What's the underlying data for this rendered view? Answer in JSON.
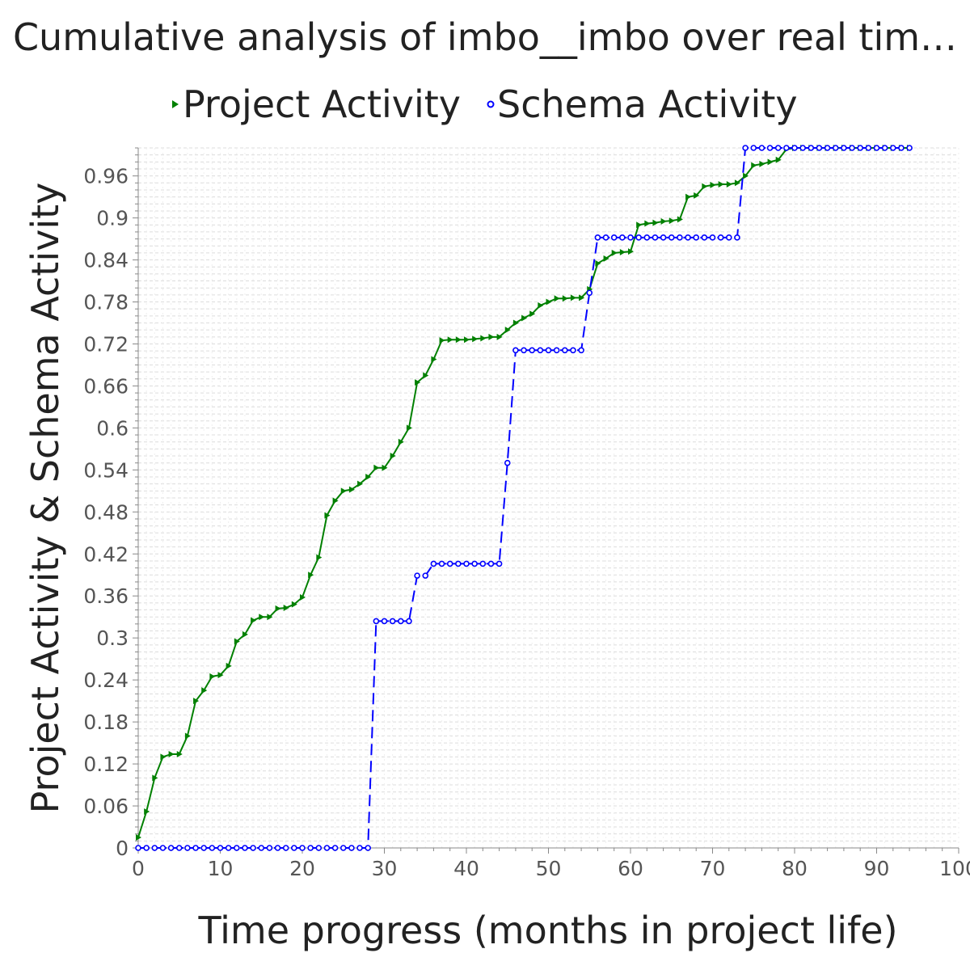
{
  "chart_data": {
    "type": "line",
    "title": "Cumulative analysis of imbo__imbo over real tim…",
    "xlabel": "Time progress (months in project life)",
    "ylabel": "Project Activity & Schema Activity",
    "xlim": [
      0,
      100
    ],
    "ylim": [
      0,
      1.0
    ],
    "x_ticks": [
      0,
      10,
      20,
      30,
      40,
      50,
      60,
      70,
      80,
      90,
      100
    ],
    "x_tick_labels": [
      "0",
      "10",
      "20",
      "30",
      "40",
      "50",
      "60",
      "70",
      "80",
      "90",
      "100"
    ],
    "y_ticks": [
      0,
      0.06,
      0.12,
      0.18,
      0.24,
      0.3,
      0.36,
      0.42,
      0.48,
      0.54,
      0.6,
      0.66,
      0.72,
      0.78,
      0.84,
      0.9,
      0.96
    ],
    "y_tick_labels": [
      "0",
      "0.06",
      "0.12",
      "0.18",
      "0.24",
      "0.3",
      "0.36",
      "0.42",
      "0.48",
      "0.54",
      "0.6",
      "0.66",
      "0.72",
      "0.78",
      "0.84",
      "0.9",
      "0.96"
    ],
    "grid": true,
    "legend_position": "top",
    "series": [
      {
        "name": "Project Activity",
        "color": "#008000",
        "marker": "triangle-right",
        "line_style": "solid",
        "x": [
          0,
          1,
          2,
          3,
          4,
          5,
          6,
          7,
          8,
          9,
          10,
          11,
          12,
          13,
          14,
          15,
          16,
          17,
          18,
          19,
          20,
          21,
          22,
          23,
          24,
          25,
          26,
          27,
          28,
          29,
          30,
          31,
          32,
          33,
          34,
          35,
          36,
          37,
          38,
          39,
          40,
          41,
          42,
          43,
          44,
          45,
          46,
          47,
          48,
          49,
          50,
          51,
          52,
          53,
          54,
          55,
          56,
          57,
          58,
          59,
          60,
          61,
          62,
          63,
          64,
          65,
          66,
          67,
          68,
          69,
          70,
          71,
          72,
          73,
          74,
          75,
          76,
          77,
          78,
          79,
          80,
          81,
          82,
          83,
          84,
          85,
          86,
          87,
          88,
          89,
          90,
          91,
          92,
          93,
          94
        ],
        "y": [
          0.015,
          0.052,
          0.1,
          0.13,
          0.134,
          0.134,
          0.16,
          0.21,
          0.225,
          0.245,
          0.247,
          0.26,
          0.295,
          0.305,
          0.325,
          0.33,
          0.33,
          0.342,
          0.343,
          0.348,
          0.358,
          0.39,
          0.415,
          0.475,
          0.496,
          0.51,
          0.512,
          0.52,
          0.53,
          0.543,
          0.543,
          0.56,
          0.58,
          0.6,
          0.665,
          0.675,
          0.698,
          0.725,
          0.726,
          0.726,
          0.726,
          0.727,
          0.728,
          0.73,
          0.73,
          0.74,
          0.75,
          0.757,
          0.763,
          0.775,
          0.78,
          0.785,
          0.785,
          0.786,
          0.786,
          0.798,
          0.835,
          0.842,
          0.85,
          0.851,
          0.852,
          0.89,
          0.892,
          0.893,
          0.895,
          0.896,
          0.898,
          0.93,
          0.932,
          0.945,
          0.947,
          0.948,
          0.948,
          0.95,
          0.96,
          0.975,
          0.977,
          0.98,
          0.983,
          0.998,
          1.0,
          1.0,
          1.0,
          1.0,
          1.0,
          1.0,
          1.0,
          1.0,
          1.0,
          1.0,
          1.0,
          1.0,
          1.0,
          1.0,
          1.0
        ]
      },
      {
        "name": "Schema Activity",
        "color": "#0000ff",
        "marker": "circle",
        "line_style": "dashed",
        "x": [
          0,
          1,
          2,
          3,
          4,
          5,
          6,
          7,
          8,
          9,
          10,
          11,
          12,
          13,
          14,
          15,
          16,
          17,
          18,
          19,
          20,
          21,
          22,
          23,
          24,
          25,
          26,
          27,
          28,
          29,
          30,
          31,
          32,
          33,
          34,
          35,
          36,
          37,
          38,
          39,
          40,
          41,
          42,
          43,
          44,
          45,
          46,
          47,
          48,
          49,
          50,
          51,
          52,
          53,
          54,
          55,
          56,
          57,
          58,
          59,
          60,
          61,
          62,
          63,
          64,
          65,
          66,
          67,
          68,
          69,
          70,
          71,
          72,
          73,
          74,
          75,
          76,
          77,
          78,
          79,
          80,
          81,
          82,
          83,
          84,
          85,
          86,
          87,
          88,
          89,
          90,
          91,
          92,
          93,
          94
        ],
        "y": [
          0,
          0,
          0,
          0,
          0,
          0,
          0,
          0,
          0,
          0,
          0,
          0,
          0,
          0,
          0,
          0,
          0,
          0,
          0,
          0,
          0,
          0,
          0,
          0,
          0,
          0,
          0,
          0,
          0,
          0.324,
          0.324,
          0.324,
          0.324,
          0.324,
          0.389,
          0.389,
          0.406,
          0.406,
          0.406,
          0.406,
          0.406,
          0.406,
          0.406,
          0.406,
          0.406,
          0.55,
          0.711,
          0.711,
          0.711,
          0.711,
          0.711,
          0.711,
          0.711,
          0.711,
          0.711,
          0.793,
          0.872,
          0.872,
          0.872,
          0.872,
          0.872,
          0.872,
          0.872,
          0.872,
          0.872,
          0.872,
          0.872,
          0.872,
          0.872,
          0.872,
          0.872,
          0.872,
          0.872,
          0.872,
          1.0,
          1.0,
          1.0,
          1.0,
          1.0,
          1.0,
          1.0,
          1.0,
          1.0,
          1.0,
          1.0,
          1.0,
          1.0,
          1.0,
          1.0,
          1.0,
          1.0,
          1.0,
          1.0,
          1.0,
          1.0
        ]
      }
    ]
  }
}
